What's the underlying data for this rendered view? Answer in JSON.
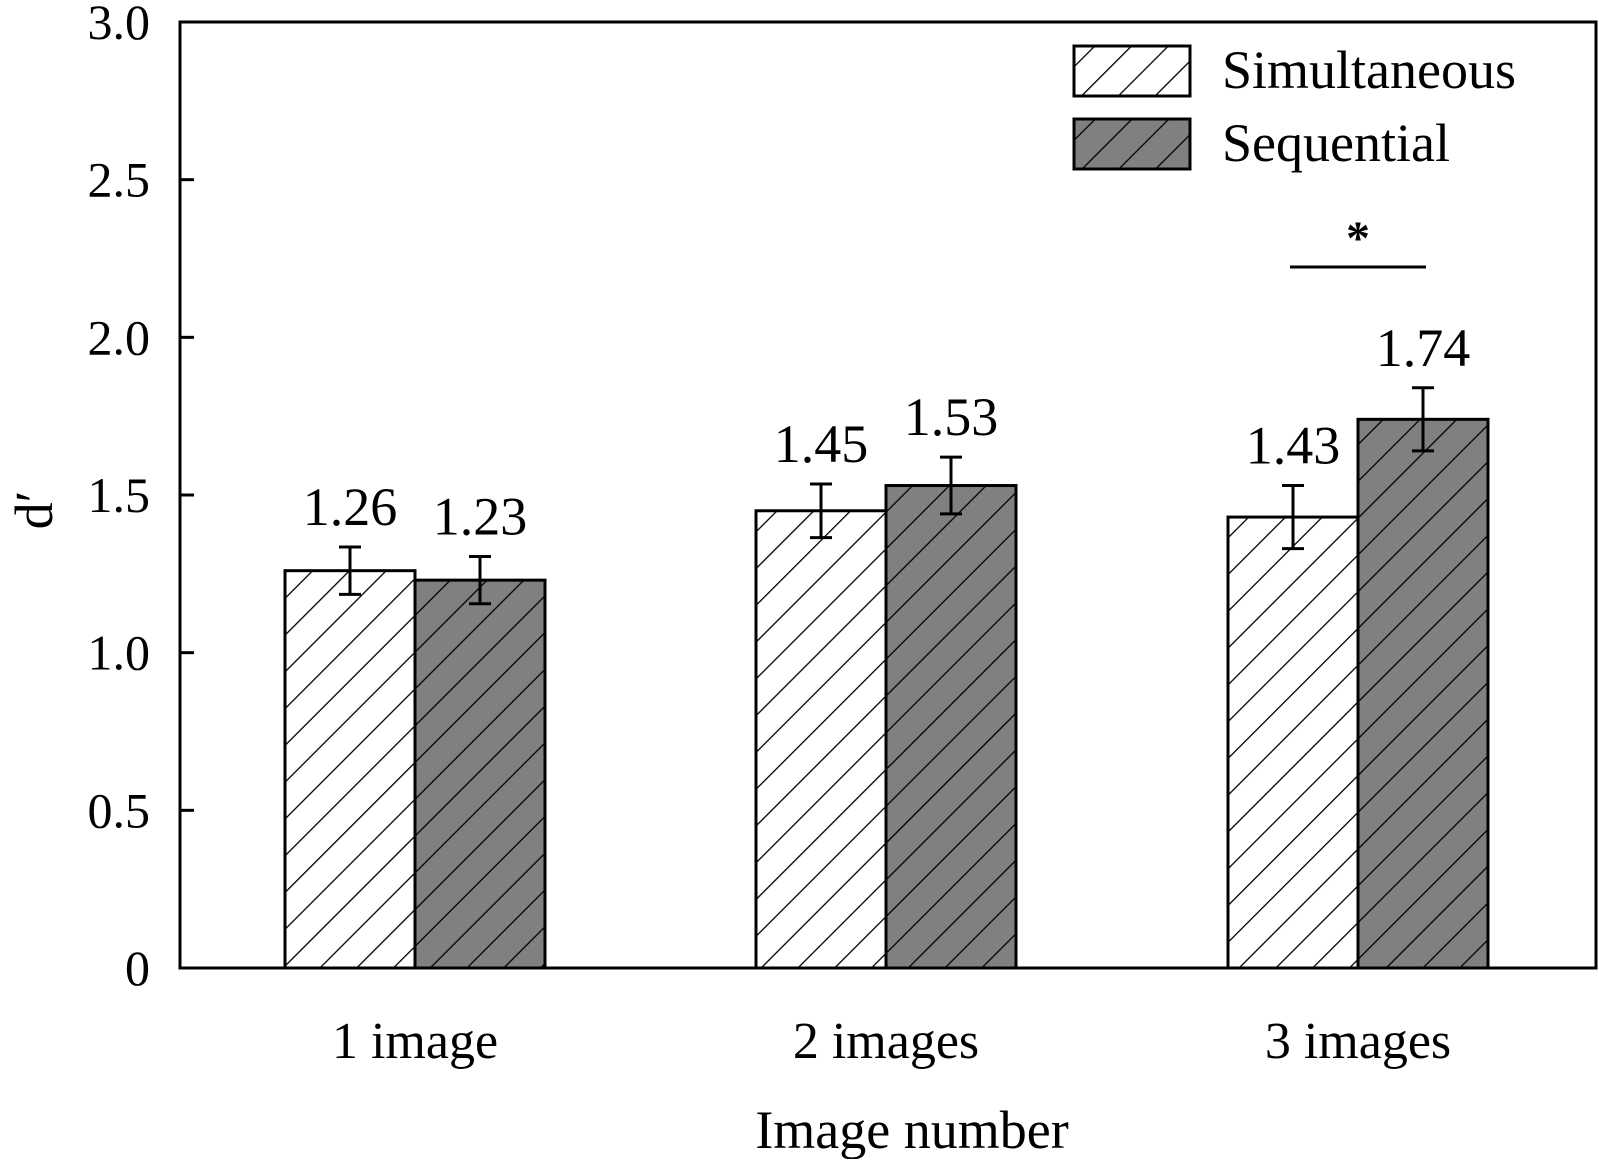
{
  "chart_data": {
    "type": "bar",
    "title": "",
    "xlabel": "Image number",
    "ylabel": "d′",
    "ylim": [
      0,
      3.0
    ],
    "yticks": [
      {
        "value": 0,
        "label": "0"
      },
      {
        "value": 0.5,
        "label": "0.5"
      },
      {
        "value": 1.0,
        "label": "1.0"
      },
      {
        "value": 1.5,
        "label": "1.5"
      },
      {
        "value": 2.0,
        "label": "2.0"
      },
      {
        "value": 2.5,
        "label": "2.5"
      },
      {
        "value": 3.0,
        "label": "3.0"
      }
    ],
    "categories": [
      "1 image",
      "2 images",
      "3 images"
    ],
    "series": [
      {
        "name": "Simultaneous",
        "values": [
          1.26,
          1.45,
          1.43
        ],
        "value_labels": [
          "1.26",
          "1.45",
          "1.43"
        ],
        "errors": [
          0.075,
          0.085,
          0.1
        ],
        "fill": "#ffffff",
        "pattern": "hatch-light"
      },
      {
        "name": "Sequential",
        "values": [
          1.23,
          1.53,
          1.74
        ],
        "value_labels": [
          "1.23",
          "1.53",
          "1.74"
        ],
        "errors": [
          0.075,
          0.09,
          0.1
        ],
        "fill": "#808080",
        "pattern": "hatch-dark"
      }
    ],
    "significance": [
      {
        "category_index": 2,
        "label": "*"
      }
    ],
    "legend": {
      "position": "top-right"
    },
    "grid": false,
    "colors": {
      "axis": "#000000",
      "hatch": "#000000",
      "simultaneous_fill": "#ffffff",
      "sequential_fill": "#808080"
    }
  }
}
